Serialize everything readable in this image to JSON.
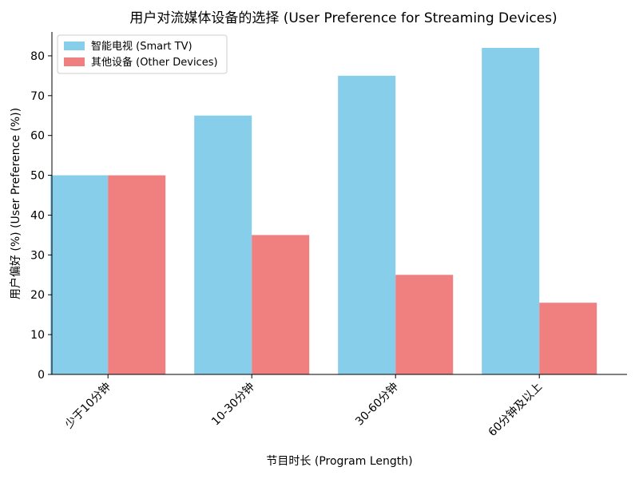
{
  "chart_data": {
    "type": "bar",
    "title": "用户对流媒体设备的选择 (User Preference for Streaming Devices)",
    "xlabel": "节目时长 (Program Length)",
    "ylabel": "用户偏好 (%) (User Preference (%))",
    "categories": [
      "少于10分钟",
      "10-30分钟",
      "30-60分钟",
      "60分钟及以上"
    ],
    "series": [
      {
        "name": "智能电视 (Smart TV)",
        "values": [
          50,
          65,
          75,
          82
        ],
        "color": "#87ceeb"
      },
      {
        "name": "其他设备 (Other Devices)",
        "values": [
          50,
          35,
          25,
          18
        ],
        "color": "#f08080"
      }
    ],
    "ylim": [
      0,
      86
    ],
    "yticks": [
      0,
      10,
      20,
      30,
      40,
      50,
      60,
      70,
      80
    ],
    "grid": false,
    "legend": "top-left"
  }
}
